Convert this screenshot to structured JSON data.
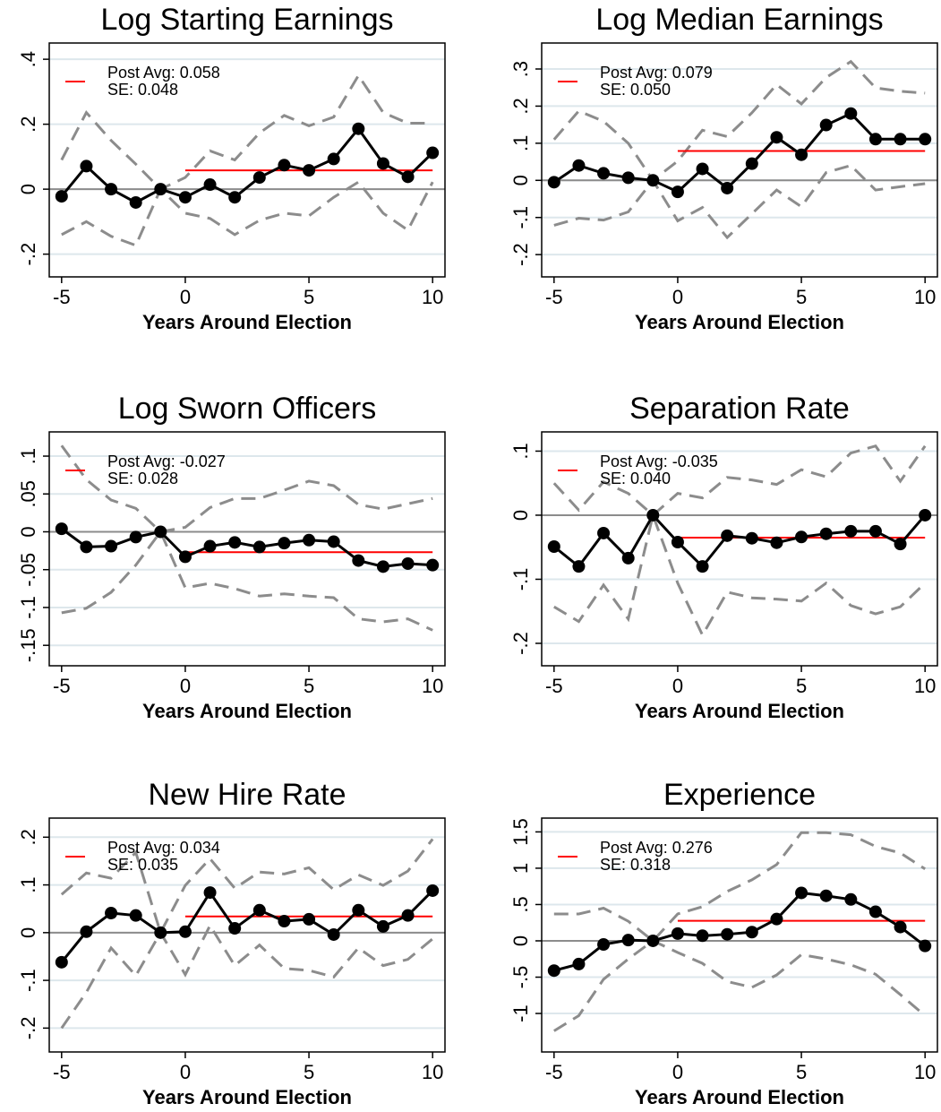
{
  "chart_data": [
    {
      "type": "line",
      "title": "Log Starting Earnings",
      "x_label": "Years Around Election",
      "x": [
        -5,
        -4,
        -3,
        -2,
        -1,
        0,
        1,
        2,
        3,
        4,
        5,
        6,
        7,
        8,
        9,
        10
      ],
      "values": [
        -0.022,
        0.071,
        0.0,
        -0.041,
        0,
        -0.025,
        0.014,
        -0.025,
        0.036,
        0.074,
        0.058,
        0.093,
        0.186,
        0.079,
        0.038,
        0.112
      ],
      "ci_upper": [
        0.09,
        0.236,
        0.15,
        0.077,
        0,
        0.036,
        0.118,
        0.09,
        0.173,
        0.227,
        0.195,
        0.222,
        0.35,
        0.236,
        0.203,
        0.203
      ],
      "ci_lower": [
        -0.14,
        -0.1,
        -0.145,
        -0.173,
        0,
        -0.074,
        -0.09,
        -0.14,
        -0.096,
        -0.074,
        -0.082,
        -0.025,
        0.022,
        -0.074,
        -0.126,
        0.022
      ],
      "post_avg": 0.058,
      "post_xrange": [
        0,
        10
      ],
      "post_avg_label": "Post Avg:  0.058",
      "se_label": "SE:  0.048",
      "xlim": [
        -5.5,
        10.5
      ],
      "xticks": [
        -5,
        0,
        5,
        10
      ],
      "ylim": [
        -0.27,
        0.45
      ],
      "yticks": [
        {
          "value": -0.2,
          "label": "-.2"
        },
        0,
        {
          "value": 0.2,
          "label": ".2"
        },
        {
          "value": 0.4,
          "label": ".4"
        }
      ],
      "hline": 0,
      "grid": true,
      "color": "#000000",
      "ci_color": "#8c8c8c",
      "post_color": "#ff0000"
    },
    {
      "type": "line",
      "title": "Log Median Earnings",
      "x_label": "Years Around Election",
      "x": [
        -5,
        -4,
        -3,
        -2,
        -1,
        0,
        1,
        2,
        3,
        4,
        5,
        6,
        7,
        8,
        9,
        10
      ],
      "values": [
        -0.005,
        0.04,
        0.019,
        0.007,
        0,
        -0.031,
        0.031,
        -0.021,
        0.045,
        0.116,
        0.069,
        0.149,
        0.18,
        0.111,
        0.111,
        0.111
      ],
      "ci_upper": [
        0.11,
        0.187,
        0.159,
        0.1,
        0,
        0.052,
        0.135,
        0.118,
        0.182,
        0.258,
        0.206,
        0.277,
        0.32,
        0.249,
        0.24,
        0.235
      ],
      "ci_lower": [
        -0.121,
        -0.102,
        -0.107,
        -0.085,
        0,
        -0.109,
        -0.073,
        -0.154,
        -0.09,
        -0.026,
        -0.071,
        0.021,
        0.04,
        -0.026,
        -0.017,
        -0.009
      ],
      "post_avg": 0.079,
      "post_xrange": [
        0,
        10
      ],
      "post_avg_label": "Post Avg:  0.079",
      "se_label": "SE:  0.050",
      "xlim": [
        -5.5,
        10.5
      ],
      "xticks": [
        -5,
        0,
        5,
        10
      ],
      "ylim": [
        -0.26,
        0.37
      ],
      "yticks": [
        {
          "value": -0.2,
          "label": "-.2"
        },
        {
          "value": -0.1,
          "label": "-.1"
        },
        0,
        {
          "value": 0.1,
          "label": ".1"
        },
        {
          "value": 0.2,
          "label": ".2"
        },
        {
          "value": 0.3,
          "label": ".3"
        }
      ],
      "hline": 0,
      "grid": true,
      "color": "#000000",
      "ci_color": "#8c8c8c",
      "post_color": "#ff0000"
    },
    {
      "type": "line",
      "title": "Log Sworn Officers",
      "x_label": "Years Around Election",
      "x": [
        -5,
        -4,
        -3,
        -2,
        -1,
        0,
        1,
        2,
        3,
        4,
        5,
        6,
        7,
        8,
        9,
        10
      ],
      "values": [
        0.004,
        -0.02,
        -0.019,
        -0.007,
        0,
        -0.033,
        -0.019,
        -0.014,
        -0.02,
        -0.015,
        -0.011,
        -0.013,
        -0.038,
        -0.046,
        -0.042,
        -0.044
      ],
      "ci_upper": [
        0.114,
        0.069,
        0.042,
        0.031,
        0,
        0.006,
        0.032,
        0.044,
        0.044,
        0.055,
        0.067,
        0.061,
        0.036,
        0.03,
        0.037,
        0.044
      ],
      "ci_lower": [
        -0.107,
        -0.101,
        -0.08,
        -0.044,
        0,
        -0.074,
        -0.068,
        -0.075,
        -0.085,
        -0.082,
        -0.085,
        -0.087,
        -0.115,
        -0.119,
        -0.115,
        -0.13
      ],
      "post_avg": -0.027,
      "post_xrange": [
        0,
        10
      ],
      "post_avg_label": "Post Avg: -0.027",
      "se_label": "SE:  0.028",
      "xlim": [
        -5.5,
        10.5
      ],
      "xticks": [
        -5,
        0,
        5,
        10
      ],
      "ylim": [
        -0.177,
        0.132
      ],
      "yticks": [
        {
          "value": -0.15,
          "label": "-.15"
        },
        {
          "value": -0.1,
          "label": "-.1"
        },
        {
          "value": -0.05,
          "label": "-.05"
        },
        0,
        {
          "value": 0.05,
          "label": ".05"
        },
        {
          "value": 0.1,
          "label": ".1"
        }
      ],
      "hline": 0,
      "grid": true,
      "color": "#000000",
      "ci_color": "#8c8c8c",
      "post_color": "#ff0000"
    },
    {
      "type": "line",
      "title": "Separation Rate",
      "x_label": "Years Around Election",
      "x": [
        -5,
        -4,
        -3,
        -2,
        -1,
        0,
        1,
        2,
        3,
        4,
        5,
        6,
        7,
        8,
        9,
        10
      ],
      "values": [
        -0.049,
        -0.08,
        -0.028,
        -0.067,
        0,
        -0.042,
        -0.08,
        -0.032,
        -0.036,
        -0.043,
        -0.034,
        -0.029,
        -0.025,
        -0.025,
        -0.045,
        0
      ],
      "ci_upper": [
        0.05,
        0.008,
        0.052,
        0.034,
        0,
        0.034,
        0.027,
        0.059,
        0.055,
        0.048,
        0.071,
        0.06,
        0.097,
        0.108,
        0.053,
        0.108
      ],
      "ci_lower": [
        -0.143,
        -0.166,
        -0.109,
        -0.162,
        0,
        -0.106,
        -0.187,
        -0.12,
        -0.129,
        -0.131,
        -0.134,
        -0.106,
        -0.141,
        -0.154,
        -0.143,
        -0.106
      ],
      "post_avg": -0.035,
      "post_xrange": [
        0,
        10
      ],
      "post_avg_label": "Post Avg: -0.035",
      "se_label": "SE:  0.040",
      "xlim": [
        -5.5,
        10.5
      ],
      "xticks": [
        -5,
        0,
        5,
        10
      ],
      "ylim": [
        -0.235,
        0.13
      ],
      "yticks": [
        {
          "value": -0.2,
          "label": "-.2"
        },
        {
          "value": -0.1,
          "label": "-.1"
        },
        0,
        {
          "value": 0.1,
          "label": ".1"
        }
      ],
      "hline": 0,
      "grid": true,
      "color": "#000000",
      "ci_color": "#8c8c8c",
      "post_color": "#ff0000"
    },
    {
      "type": "line",
      "title": "New Hire Rate",
      "x_label": "Years Around Election",
      "x": [
        -5,
        -4,
        -3,
        -2,
        -1,
        0,
        1,
        2,
        3,
        4,
        5,
        6,
        7,
        8,
        9,
        10
      ],
      "values": [
        -0.062,
        0.002,
        0.041,
        0.036,
        0,
        0.002,
        0.084,
        0.009,
        0.047,
        0.024,
        0.028,
        -0.004,
        0.047,
        0.013,
        0.036,
        0.088
      ],
      "ci_upper": [
        0.08,
        0.125,
        0.114,
        0.168,
        0,
        0.099,
        0.155,
        0.093,
        0.127,
        0.123,
        0.136,
        0.09,
        0.121,
        0.099,
        0.129,
        0.196
      ],
      "ci_lower": [
        -0.2,
        -0.125,
        -0.032,
        -0.09,
        0,
        -0.088,
        0.015,
        -0.069,
        -0.026,
        -0.075,
        -0.079,
        -0.093,
        -0.032,
        -0.069,
        -0.056,
        -0.013
      ],
      "post_avg": 0.034,
      "post_xrange": [
        0,
        10
      ],
      "post_avg_label": "Post Avg:  0.034",
      "se_label": "SE:  0.035",
      "xlim": [
        -5.5,
        10.5
      ],
      "xticks": [
        -5,
        0,
        5,
        10
      ],
      "ylim": [
        -0.25,
        0.24
      ],
      "yticks": [
        {
          "value": -0.2,
          "label": "-.2"
        },
        {
          "value": -0.1,
          "label": "-.1"
        },
        0,
        {
          "value": 0.1,
          "label": ".1"
        },
        {
          "value": 0.2,
          "label": ".2"
        }
      ],
      "hline": 0,
      "grid": true,
      "color": "#000000",
      "ci_color": "#8c8c8c",
      "post_color": "#ff0000"
    },
    {
      "type": "line",
      "title": "Experience",
      "x_label": "Years Around Election",
      "x": [
        -5,
        -4,
        -3,
        -2,
        -1,
        0,
        1,
        2,
        3,
        4,
        5,
        6,
        7,
        8,
        9,
        10
      ],
      "values": [
        -0.41,
        -0.32,
        -0.05,
        0.01,
        0,
        0.1,
        0.07,
        0.09,
        0.12,
        0.3,
        0.66,
        0.62,
        0.57,
        0.4,
        0.19,
        -0.07
      ],
      "ci_upper": [
        0.37,
        0.37,
        0.45,
        0.27,
        0,
        0.37,
        0.47,
        0.68,
        0.84,
        1.05,
        1.49,
        1.49,
        1.46,
        1.3,
        1.21,
        0.99
      ],
      "ci_lower": [
        -1.24,
        -1.03,
        -0.53,
        -0.25,
        0,
        -0.16,
        -0.31,
        -0.56,
        -0.64,
        -0.47,
        -0.19,
        -0.25,
        -0.33,
        -0.46,
        -0.74,
        -1.03
      ],
      "post_avg": 0.276,
      "post_xrange": [
        0,
        10
      ],
      "post_avg_label": "Post Avg:  0.276",
      "se_label": "SE:  0.318",
      "xlim": [
        -5.5,
        10.5
      ],
      "xticks": [
        -5,
        0,
        5,
        10
      ],
      "ylim": [
        -1.53,
        1.69
      ],
      "yticks": [
        -1,
        {
          "value": -0.5,
          "label": "-.5"
        },
        0,
        {
          "value": 0.5,
          "label": ".5"
        },
        1,
        1.5
      ],
      "hline": 0,
      "grid": true,
      "color": "#000000",
      "ci_color": "#8c8c8c",
      "post_color": "#ff0000"
    }
  ]
}
